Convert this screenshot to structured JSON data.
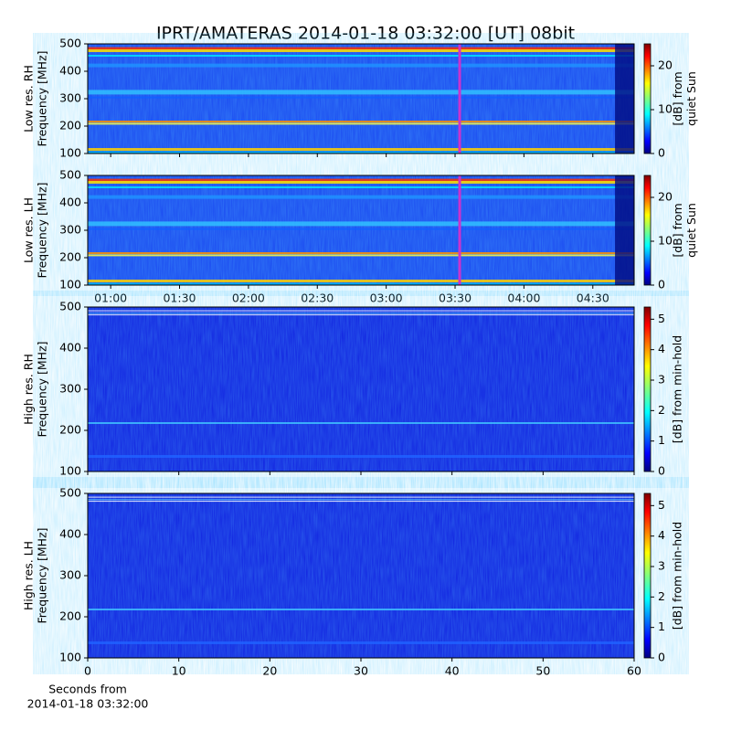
{
  "title": "IPRT/AMATERAS 2014-01-18 03:32:00 [UT]   08bit",
  "chart_data": [
    {
      "type": "heatmap",
      "ylabel": [
        "Low res. RH",
        "Frequency [MHz]"
      ],
      "ylim": [
        100,
        500
      ],
      "yticks": [
        100,
        200,
        300,
        400,
        500
      ],
      "xlim": [
        50,
        288
      ],
      "xticks": [
        60,
        90,
        120,
        150,
        180,
        210,
        240,
        270
      ],
      "xtick_labels": false,
      "marker_x": 212,
      "marker_color": "#cc33cc",
      "clim": [
        0,
        25
      ],
      "cticks": [
        0,
        10,
        20
      ],
      "clabel": [
        "[dB] from",
        "quiet Sun"
      ]
    },
    {
      "type": "heatmap",
      "ylabel": [
        "Low res. LH",
        "Frequency [MHz]"
      ],
      "ylim": [
        100,
        500
      ],
      "yticks": [
        100,
        200,
        300,
        400,
        500
      ],
      "xlim": [
        50,
        288
      ],
      "xticks": [
        {
          "value": 60,
          "label": "01:00"
        },
        {
          "value": 90,
          "label": "01:30"
        },
        {
          "value": 120,
          "label": "02:00"
        },
        {
          "value": 150,
          "label": "02:30"
        },
        {
          "value": 180,
          "label": "03:00"
        },
        {
          "value": 210,
          "label": "03:30"
        },
        {
          "value": 240,
          "label": "04:00"
        },
        {
          "value": 270,
          "label": "04:30"
        }
      ],
      "marker_x": 212,
      "marker_color": "#cc33cc",
      "clim": [
        0,
        25
      ],
      "cticks": [
        0,
        10,
        20
      ],
      "clabel": [
        "[dB] from",
        "quiet Sun"
      ]
    },
    {
      "type": "heatmap",
      "ylabel": [
        "High res. RH",
        "Frequency [MHz]"
      ],
      "ylim": [
        100,
        500
      ],
      "yticks": [
        100,
        200,
        300,
        400,
        500
      ],
      "xlim": [
        0,
        60
      ],
      "xticks": [
        0,
        10,
        20,
        30,
        40,
        50,
        60
      ],
      "xtick_labels": false,
      "clim": [
        0,
        5.4
      ],
      "cticks": [
        0,
        1,
        2,
        3,
        4,
        5
      ],
      "clabel": [
        "[dB] from min-hold"
      ]
    },
    {
      "type": "heatmap",
      "ylabel": [
        "High res. LH",
        "Frequency [MHz]"
      ],
      "ylim": [
        100,
        500
      ],
      "yticks": [
        100,
        200,
        300,
        400,
        500
      ],
      "xlim": [
        0,
        60
      ],
      "xticks": [
        0,
        10,
        20,
        30,
        40,
        50,
        60
      ],
      "xtick_labels": true,
      "xlabel": [
        "Seconds from",
        "2014-01-18 03:32:00"
      ],
      "clim": [
        0,
        5.4
      ],
      "cticks": [
        0,
        1,
        2,
        3,
        4,
        5
      ],
      "clabel": [
        "[dB] from min-hold"
      ]
    }
  ]
}
